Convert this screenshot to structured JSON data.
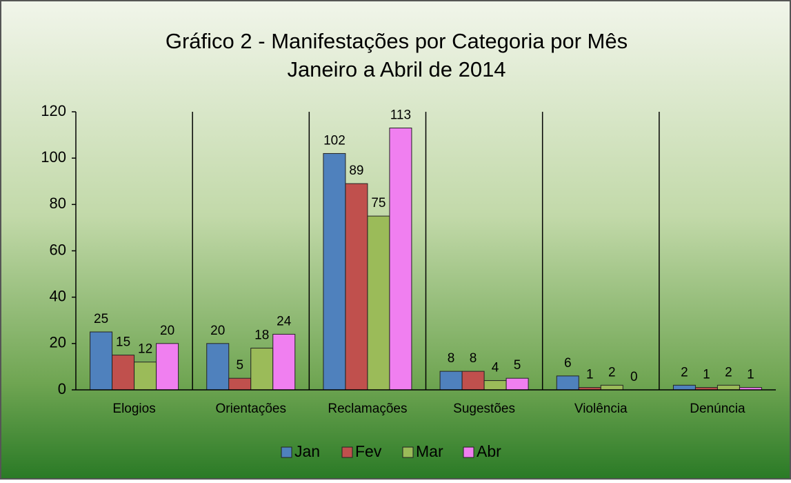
{
  "chart_data": {
    "type": "bar",
    "title": "Gráfico 2 - Manifestações por Categoria por Mês",
    "subtitle": "Janeiro a Abril de 2014",
    "categories": [
      "Elogios",
      "Orientações",
      "Reclamações",
      "Sugestões",
      "Violência",
      "Denúncia"
    ],
    "series": [
      {
        "name": "Jan",
        "color": "#4f81bd",
        "values": [
          25,
          20,
          102,
          8,
          6,
          2
        ]
      },
      {
        "name": "Fev",
        "color": "#c0504d",
        "values": [
          15,
          5,
          89,
          8,
          1,
          1
        ]
      },
      {
        "name": "Mar",
        "color": "#9bbb59",
        "values": [
          12,
          18,
          75,
          4,
          2,
          2
        ]
      },
      {
        "name": "Abr",
        "color": "#f07ff0",
        "values": [
          20,
          24,
          113,
          5,
          0,
          1
        ]
      }
    ],
    "ylim": [
      0,
      120
    ],
    "yticks": [
      0,
      20,
      40,
      60,
      80,
      100,
      120
    ],
    "legend": "bottom"
  }
}
